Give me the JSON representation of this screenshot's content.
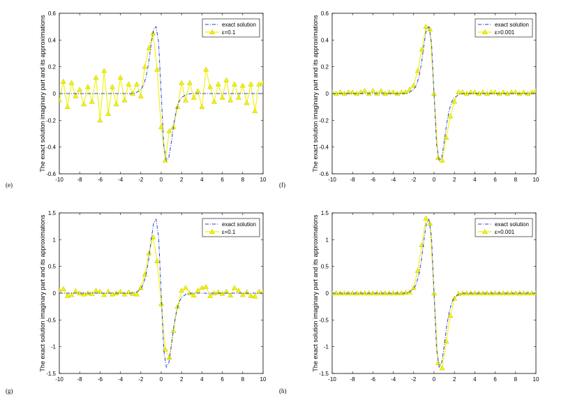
{
  "panels_order": [
    "e",
    "f",
    "g",
    "h"
  ],
  "styles": {
    "exact_color": "#1f3fd6",
    "approx_color": "#f2f200",
    "approx_edge": "#b8b800"
  },
  "chart_data": [
    {
      "type": "line",
      "panel_label": "(e)",
      "ylabel": "The exact solution imaginary part and its approximations",
      "xlim": [
        -10,
        10
      ],
      "ylim": [
        -0.6,
        0.6
      ],
      "xticks": [
        "-10",
        "-8",
        "-6",
        "-4",
        "-2",
        "0",
        "2",
        "4",
        "6",
        "8",
        "10"
      ],
      "yticks": [
        "-0.6",
        "-0.4",
        "-0.2",
        "0",
        "0.2",
        "0.4",
        "0.6"
      ],
      "grid": false,
      "legend_position": "top-right",
      "series": [
        {
          "name": "exact solution",
          "style": "dash-dot",
          "color": "#1f3fd6",
          "x": [
            -10,
            -3,
            -2.5,
            -2,
            -1.75,
            -1.5,
            -1.25,
            -1,
            -0.75,
            -0.5,
            -0.25,
            0,
            0.25,
            0.5,
            0.75,
            1,
            1.25,
            1.5,
            1.75,
            2,
            2.5,
            3,
            10
          ],
          "y": [
            0,
            0,
            0.005,
            0.03,
            0.06,
            0.12,
            0.22,
            0.36,
            0.48,
            0.5,
            0.38,
            0,
            -0.38,
            -0.5,
            -0.48,
            -0.36,
            -0.22,
            -0.12,
            -0.06,
            -0.03,
            -0.005,
            0,
            0
          ]
        },
        {
          "name": "ε=0.1",
          "style": "line-triangle",
          "color": "#f2f200",
          "x": [
            -10,
            -9.6,
            -9.2,
            -8.8,
            -8.4,
            -8,
            -7.6,
            -7.2,
            -6.8,
            -6.4,
            -6,
            -5.6,
            -5.2,
            -4.8,
            -4.4,
            -4,
            -3.6,
            -3.2,
            -2.8,
            -2.4,
            -2,
            -1.6,
            -1.2,
            -0.8,
            -0.4,
            0,
            0.4,
            0.8,
            1.2,
            1.6,
            2,
            2.4,
            2.8,
            3.2,
            3.6,
            4,
            4.4,
            4.8,
            5.2,
            5.6,
            6,
            6.4,
            6.8,
            7.2,
            7.6,
            8,
            8.4,
            8.8,
            9.2,
            9.6,
            10
          ],
          "y": [
            -0.05,
            0.09,
            -0.1,
            0.08,
            -0.02,
            0.03,
            -0.08,
            0.05,
            -0.06,
            0.12,
            -0.2,
            0.17,
            -0.15,
            0.05,
            -0.08,
            0.12,
            -0.05,
            0.07,
            0,
            0.07,
            -0.02,
            0.2,
            0.34,
            0.45,
            0.18,
            -0.25,
            -0.5,
            -0.28,
            -0.25,
            -0.1,
            0.08,
            -0.05,
            0.08,
            -0.03,
            0.02,
            -0.1,
            0.18,
            0.05,
            -0.06,
            0.07,
            -0.03,
            0.1,
            -0.05,
            0.07,
            -0.03,
            0.06,
            -0.07,
            0.07,
            -0.13,
            0.07,
            0.08
          ]
        }
      ]
    },
    {
      "type": "line",
      "panel_label": "(f)",
      "ylabel": "The exact solution imaginary part and its approximations",
      "xlim": [
        -10,
        10
      ],
      "ylim": [
        -0.6,
        0.6
      ],
      "xticks": [
        "-10",
        "-8",
        "-6",
        "-4",
        "-2",
        "0",
        "2",
        "4",
        "6",
        "8",
        "10"
      ],
      "yticks": [
        "-0.6",
        "-0.4",
        "-0.2",
        "0",
        "0.2",
        "0.4",
        "0.6"
      ],
      "grid": false,
      "legend_position": "top-right",
      "series": [
        {
          "name": "exact solution",
          "style": "dash-dot",
          "color": "#1f3fd6",
          "x": [
            -10,
            -3,
            -2.5,
            -2,
            -1.75,
            -1.5,
            -1.25,
            -1,
            -0.75,
            -0.5,
            -0.25,
            0,
            0.25,
            0.5,
            0.75,
            1,
            1.25,
            1.5,
            1.75,
            2,
            2.5,
            3,
            10
          ],
          "y": [
            0,
            0,
            0.005,
            0.03,
            0.06,
            0.12,
            0.22,
            0.36,
            0.48,
            0.5,
            0.38,
            0,
            -0.38,
            -0.5,
            -0.48,
            -0.36,
            -0.22,
            -0.12,
            -0.06,
            -0.03,
            -0.005,
            0,
            0
          ]
        },
        {
          "name": "ε=0.001",
          "style": "line-triangle",
          "color": "#f2f200",
          "x": [
            -10,
            -9.6,
            -9.2,
            -8.8,
            -8.4,
            -8,
            -7.6,
            -7.2,
            -6.8,
            -6.4,
            -6,
            -5.6,
            -5.2,
            -4.8,
            -4.4,
            -4,
            -3.6,
            -3.2,
            -2.8,
            -2.4,
            -2,
            -1.6,
            -1.2,
            -0.8,
            -0.4,
            0,
            0.4,
            0.8,
            1.2,
            1.6,
            2,
            2.4,
            2.8,
            3.2,
            3.6,
            4,
            4.4,
            4.8,
            5.2,
            5.6,
            6,
            6.4,
            6.8,
            7.2,
            7.6,
            8,
            8.4,
            8.8,
            9.2,
            9.6,
            10
          ],
          "y": [
            0.01,
            0,
            0.01,
            0,
            0.01,
            0.01,
            0,
            0.01,
            0.02,
            0,
            0.02,
            0,
            0.02,
            0,
            0.01,
            0.01,
            0,
            0.01,
            0.01,
            0.03,
            0.06,
            0.17,
            0.33,
            0.5,
            0.48,
            0,
            -0.48,
            -0.5,
            -0.33,
            -0.17,
            -0.06,
            0.01,
            0.01,
            0,
            0.01,
            0.01,
            0,
            0.01,
            0,
            0.01,
            0.01,
            0,
            0.01,
            0,
            0.01,
            0.01,
            0,
            0.01,
            0,
            0.01,
            0.02
          ]
        }
      ]
    },
    {
      "type": "line",
      "panel_label": "(g)",
      "ylabel": "The exact solution imaginary part and its approximations",
      "xlim": [
        -10,
        10
      ],
      "ylim": [
        -1.5,
        1.5
      ],
      "xticks": [
        "-10",
        "-8",
        "-6",
        "-4",
        "-2",
        "0",
        "2",
        "4",
        "6",
        "8",
        "10"
      ],
      "yticks": [
        "-1.5",
        "-1",
        "-0.5",
        "0",
        "0.5",
        "1",
        "1.5"
      ],
      "grid": false,
      "legend_position": "top-right",
      "series": [
        {
          "name": "exact solution",
          "style": "dash-dot",
          "color": "#1f3fd6",
          "x": [
            -10,
            -3,
            -2.5,
            -2,
            -1.75,
            -1.5,
            -1.25,
            -1,
            -0.75,
            -0.5,
            -0.25,
            0,
            0.25,
            0.5,
            0.75,
            1,
            1.25,
            1.5,
            1.75,
            2,
            2.5,
            3,
            10
          ],
          "y": [
            0,
            0,
            0.01,
            0.08,
            0.17,
            0.34,
            0.6,
            0.98,
            1.3,
            1.38,
            1.05,
            0,
            -1.05,
            -1.38,
            -1.3,
            -0.98,
            -0.6,
            -0.34,
            -0.17,
            -0.08,
            -0.01,
            0,
            0
          ]
        },
        {
          "name": "ε=0.1",
          "style": "line-triangle",
          "color": "#f2f200",
          "x": [
            -10,
            -9.6,
            -9.2,
            -8.8,
            -8.4,
            -8,
            -7.6,
            -7.2,
            -6.8,
            -6.4,
            -6,
            -5.6,
            -5.2,
            -4.8,
            -4.4,
            -4,
            -3.6,
            -3.2,
            -2.8,
            -2.4,
            -2,
            -1.6,
            -1.2,
            -0.8,
            -0.4,
            0,
            0.4,
            0.8,
            1.2,
            1.6,
            2,
            2.4,
            2.8,
            3.2,
            3.6,
            4,
            4.4,
            4.8,
            5.2,
            5.6,
            6,
            6.4,
            6.8,
            7.2,
            7.6,
            8,
            8.4,
            8.8,
            9.2,
            9.6,
            10
          ],
          "y": [
            0.05,
            0.08,
            -0.05,
            -0.03,
            0.04,
            0,
            -0.02,
            0,
            -0.01,
            0.05,
            0.03,
            -0.03,
            0.03,
            -0.02,
            0,
            0.03,
            -0.02,
            0.02,
            -0.01,
            -0.02,
            0.1,
            0.35,
            0.75,
            1.05,
            0.6,
            -0.2,
            -1.05,
            -1.2,
            -0.7,
            -0.25,
            0.05,
            0.1,
            0,
            -0.04,
            0.05,
            0.1,
            0.12,
            -0.05,
            0,
            0.02,
            -0.01,
            0.03,
            -0.04,
            0.1,
            0.05,
            -0.03,
            0.02,
            -0.05,
            -0.06,
            0.03,
            0.02
          ]
        }
      ]
    },
    {
      "type": "line",
      "panel_label": "(h)",
      "ylabel": "The exact solution imaginary part and its approximations",
      "xlim": [
        -10,
        10
      ],
      "ylim": [
        -1.5,
        1.5
      ],
      "xticks": [
        "-10",
        "-8",
        "-6",
        "-4",
        "-2",
        "0",
        "2",
        "4",
        "6",
        "8",
        "10"
      ],
      "yticks": [
        "-1.5",
        "-1",
        "-0.5",
        "0",
        "0.5",
        "1",
        "1.5"
      ],
      "grid": false,
      "legend_position": "top-right",
      "series": [
        {
          "name": "exact solution",
          "style": "dash-dot",
          "color": "#1f3fd6",
          "x": [
            -10,
            -3,
            -2.5,
            -2,
            -1.75,
            -1.5,
            -1.25,
            -1,
            -0.75,
            -0.5,
            -0.25,
            0,
            0.25,
            0.5,
            0.75,
            1,
            1.25,
            1.5,
            1.75,
            2,
            2.5,
            3,
            10
          ],
          "y": [
            0,
            0,
            0.01,
            0.08,
            0.17,
            0.34,
            0.6,
            0.98,
            1.3,
            1.38,
            1.05,
            0,
            -1.05,
            -1.38,
            -1.3,
            -0.98,
            -0.6,
            -0.34,
            -0.17,
            -0.08,
            -0.01,
            0,
            0
          ]
        },
        {
          "name": "ε=0.001",
          "style": "line-triangle",
          "color": "#f2f200",
          "x": [
            -10,
            -9.6,
            -9.2,
            -8.8,
            -8.4,
            -8,
            -7.6,
            -7.2,
            -6.8,
            -6.4,
            -6,
            -5.6,
            -5.2,
            -4.8,
            -4.4,
            -4,
            -3.6,
            -3.2,
            -2.8,
            -2.4,
            -2,
            -1.6,
            -1.2,
            -0.8,
            -0.4,
            0,
            0.4,
            0.8,
            1.2,
            1.6,
            2,
            2.4,
            2.8,
            3.2,
            3.6,
            4,
            4.4,
            4.8,
            5.2,
            5.6,
            6,
            6.4,
            6.8,
            7.2,
            7.6,
            8,
            8.4,
            8.8,
            9.2,
            9.6,
            10
          ],
          "y": [
            0,
            0,
            0,
            0,
            0,
            0,
            0,
            0,
            0,
            0,
            0,
            0,
            0,
            0,
            0,
            0,
            0,
            0,
            0.01,
            0.02,
            0.1,
            0.42,
            0.9,
            1.4,
            1.3,
            0,
            -1.3,
            -1.4,
            -0.9,
            -0.42,
            -0.1,
            -0.01,
            0,
            0,
            0,
            0,
            0,
            0,
            0,
            0,
            0,
            0,
            0,
            0,
            0,
            0,
            0,
            0,
            0,
            0,
            0
          ]
        }
      ]
    }
  ]
}
